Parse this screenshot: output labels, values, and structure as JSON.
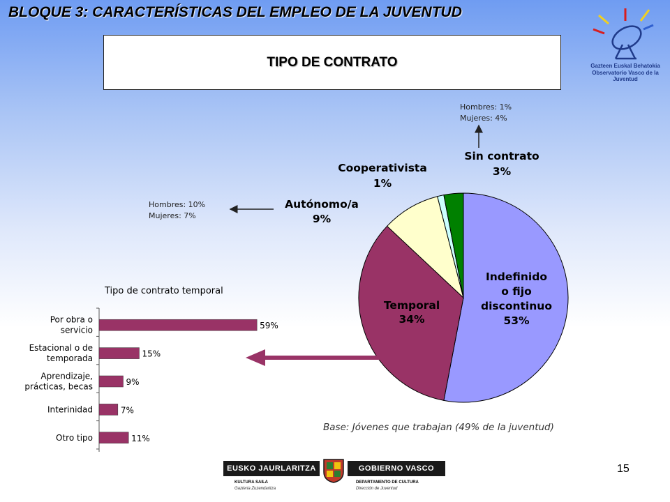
{
  "header": {
    "title": "BLOQUE 3: CARACTERÍSTICAS DEL EMPLEO DE LA JUVENTUD"
  },
  "observatory_logo": {
    "line1": "Gazteen Euskal Behatokia",
    "line2": "Observatorio Vasco de la Juventud",
    "icon": "satellite-dish-icon"
  },
  "title_box": {
    "text": "TIPO DE CONTRATO"
  },
  "notes": {
    "sin_contrato": {
      "line1": "Hombres: 1%",
      "line2": "Mujeres: 4%"
    },
    "autonomo": {
      "line1": "Hombres: 10%",
      "line2": "Mujeres: 7%"
    }
  },
  "base_note": "Base: Jóvenes que trabajan (49% de la juventud)",
  "page_number": "15",
  "gov_logo": {
    "left": "EUSKO JAURLARITZA",
    "right": "GOBIERNO VASCO",
    "left_sub1": "KULTURA SAILA",
    "left_sub2": "Gazteria Zuzendaritza",
    "right_sub1": "DEPARTAMENTO DE CULTURA",
    "right_sub2": "Dirección de Juventud",
    "icon": "coat-of-arms-icon"
  },
  "colors": {
    "indefinido": "#9999ff",
    "temporal": "#993366",
    "autonomo": "#ffffcc",
    "cooperativista": "#ccffff",
    "sin_contrato": "#008000",
    "bar": "#993366",
    "arrow": "#993366"
  },
  "chart_data": [
    {
      "type": "pie",
      "title": "",
      "slices": [
        {
          "name": "Indefinido o fijo discontinuo",
          "label_lines": [
            "Indefinido",
            "o fijo",
            "discontinuo"
          ],
          "value": 53,
          "value_label": "53%"
        },
        {
          "name": "Temporal",
          "label_lines": [
            "Temporal"
          ],
          "value": 34,
          "value_label": "34%"
        },
        {
          "name": "Autónomo/a",
          "label_lines": [
            "Autónomo/a"
          ],
          "value": 9,
          "value_label": "9%"
        },
        {
          "name": "Cooperativista",
          "label_lines": [
            "Cooperativista"
          ],
          "value": 1,
          "value_label": "1%"
        },
        {
          "name": "Sin contrato",
          "label_lines": [
            "Sin contrato"
          ],
          "value": 3,
          "value_label": "3%"
        }
      ]
    },
    {
      "type": "bar",
      "orientation": "horizontal",
      "title": "Tipo de contrato temporal",
      "categories": [
        [
          "Por obra o",
          "servicio"
        ],
        [
          "Estacional o de",
          "temporada"
        ],
        [
          "Aprendizaje,",
          "prácticas, becas"
        ],
        [
          "Interinidad"
        ],
        [
          "Otro tipo"
        ]
      ],
      "values": [
        59,
        15,
        9,
        7,
        11
      ],
      "value_labels": [
        "59%",
        "15%",
        "9%",
        "7%",
        "11%"
      ],
      "xlim": [
        0,
        60
      ]
    }
  ]
}
